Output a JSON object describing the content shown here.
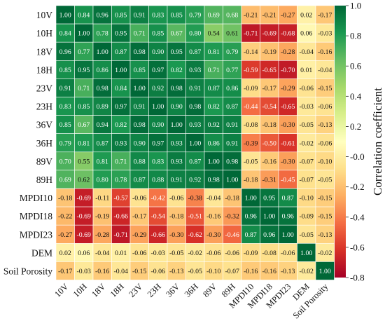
{
  "chart_data": {
    "type": "heatmap",
    "variables": [
      "10V",
      "10H",
      "18V",
      "18H",
      "23V",
      "23H",
      "36V",
      "36H",
      "89V",
      "89H",
      "MPDI10",
      "MPDI18",
      "MPDI23",
      "DEM",
      "Soil Porosity"
    ],
    "values": [
      [
        1.0,
        0.84,
        0.96,
        0.85,
        0.91,
        0.83,
        0.85,
        0.79,
        0.69,
        0.68,
        -0.21,
        -0.21,
        -0.27,
        0.02,
        -0.17
      ],
      [
        0.84,
        1.0,
        0.78,
        0.95,
        0.71,
        0.85,
        0.67,
        0.8,
        0.54,
        0.61,
        -0.71,
        -0.69,
        -0.68,
        0.06,
        -0.03
      ],
      [
        0.96,
        0.77,
        1.0,
        0.87,
        0.98,
        0.9,
        0.95,
        0.87,
        0.81,
        0.79,
        -0.14,
        -0.19,
        -0.28,
        -0.04,
        -0.16
      ],
      [
        0.85,
        0.95,
        0.86,
        1.0,
        0.85,
        0.97,
        0.82,
        0.93,
        0.71,
        0.77,
        -0.59,
        -0.65,
        -0.7,
        0.01,
        -0.04
      ],
      [
        0.91,
        0.71,
        0.98,
        0.84,
        1.0,
        0.92,
        0.98,
        0.91,
        0.87,
        0.86,
        -0.09,
        -0.17,
        -0.29,
        -0.06,
        -0.15
      ],
      [
        0.83,
        0.85,
        0.89,
        0.97,
        0.91,
        1.0,
        0.9,
        0.98,
        0.82,
        0.87,
        -0.44,
        -0.54,
        -0.65,
        -0.03,
        -0.06
      ],
      [
        0.85,
        0.67,
        0.94,
        0.82,
        0.98,
        0.9,
        1.0,
        0.93,
        0.92,
        0.91,
        -0.08,
        -0.18,
        -0.3,
        -0.05,
        -0.13
      ],
      [
        0.79,
        0.81,
        0.87,
        0.93,
        0.9,
        0.97,
        0.93,
        1.0,
        0.86,
        0.91,
        -0.39,
        -0.5,
        -0.61,
        -0.02,
        -0.06
      ],
      [
        0.7,
        0.55,
        0.81,
        0.71,
        0.88,
        0.83,
        0.93,
        0.87,
        1.0,
        0.98,
        -0.05,
        -0.16,
        -0.3,
        -0.07,
        -0.1
      ],
      [
        0.69,
        0.62,
        0.8,
        0.78,
        0.87,
        0.88,
        0.91,
        0.92,
        0.98,
        1.0,
        -0.18,
        -0.31,
        -0.45,
        -0.07,
        -0.05
      ],
      [
        -0.18,
        -0.69,
        -0.11,
        -0.57,
        -0.06,
        -0.42,
        -0.06,
        -0.38,
        -0.04,
        -0.18,
        1.0,
        0.95,
        0.87,
        -0.1,
        -0.15
      ],
      [
        -0.22,
        -0.69,
        -0.19,
        -0.66,
        -0.17,
        -0.54,
        -0.18,
        -0.51,
        -0.16,
        -0.32,
        0.96,
        1.0,
        0.96,
        -0.09,
        -0.15
      ],
      [
        -0.27,
        -0.69,
        -0.28,
        -0.71,
        -0.29,
        -0.66,
        -0.3,
        -0.62,
        -0.3,
        -0.46,
        0.87,
        0.96,
        1.0,
        -0.05,
        -0.13
      ],
      [
        0.02,
        0.06,
        -0.04,
        0.01,
        -0.06,
        -0.03,
        -0.05,
        -0.02,
        -0.06,
        -0.06,
        -0.09,
        -0.08,
        -0.06,
        1.0,
        -0.02
      ],
      [
        -0.17,
        -0.03,
        -0.16,
        -0.04,
        -0.15,
        -0.06,
        -0.13,
        -0.05,
        -0.1,
        -0.07,
        -0.16,
        -0.16,
        -0.13,
        -0.02,
        1.0
      ]
    ],
    "number_format": "2 decimals",
    "colorbar": {
      "label": "Correlation coefficient",
      "range": [
        -0.8,
        1.0
      ],
      "ticks": [
        "1.0",
        "0.8",
        "0.6",
        "0.4",
        "0.2",
        "-0.0",
        "-0.2",
        "-0.4",
        "-0.6",
        "-0.8"
      ],
      "tick_values": [
        1.0,
        0.8,
        0.6,
        0.4,
        0.2,
        0.0,
        -0.2,
        -0.4,
        -0.6,
        -0.8
      ],
      "colormap": "RdYlGn",
      "stops": [
        "#a50026",
        "#d73027",
        "#f46d43",
        "#fdae61",
        "#fee08b",
        "#ffffbf",
        "#d9ef8b",
        "#a6d96a",
        "#66bd63",
        "#1a9850",
        "#006837"
      ]
    },
    "title": "",
    "xlabel": "",
    "ylabel": ""
  }
}
